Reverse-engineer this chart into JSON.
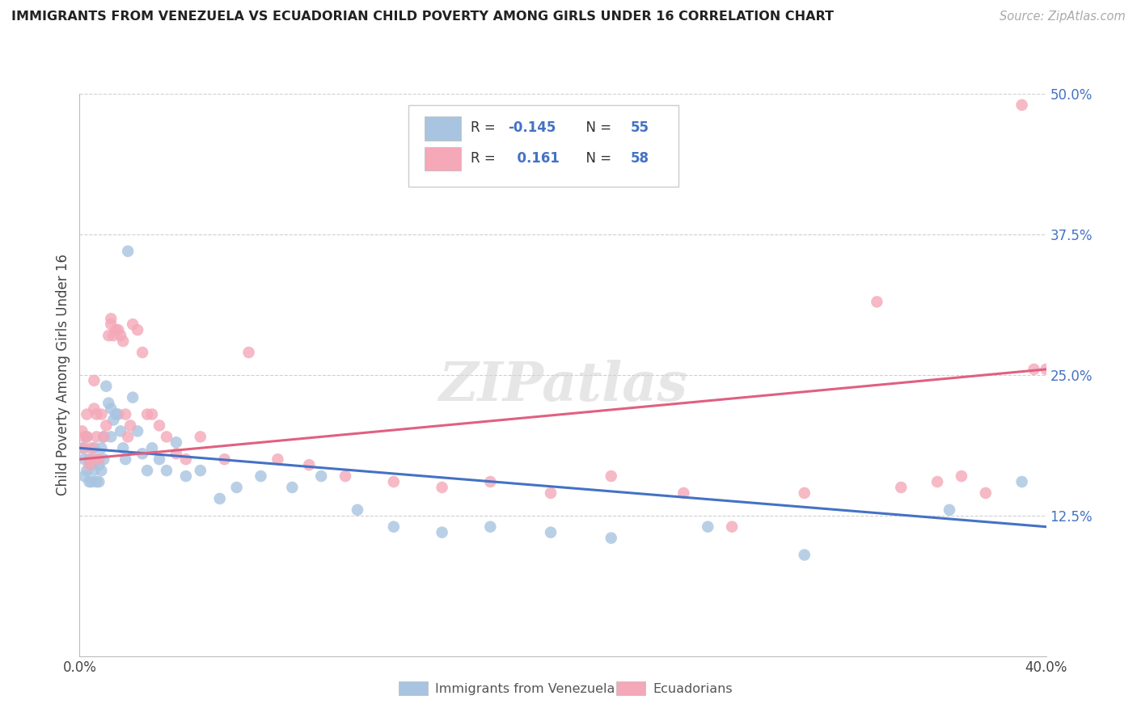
{
  "title": "IMMIGRANTS FROM VENEZUELA VS ECUADORIAN CHILD POVERTY AMONG GIRLS UNDER 16 CORRELATION CHART",
  "source": "Source: ZipAtlas.com",
  "ylabel": "Child Poverty Among Girls Under 16",
  "xlim": [
    0.0,
    0.4
  ],
  "ylim": [
    0.0,
    0.5
  ],
  "xticks": [
    0.0,
    0.05,
    0.1,
    0.15,
    0.2,
    0.25,
    0.3,
    0.35,
    0.4
  ],
  "xticklabels": [
    "0.0%",
    "",
    "",
    "",
    "",
    "",
    "",
    "",
    "40.0%"
  ],
  "yticks_right": [
    0.125,
    0.25,
    0.375,
    0.5
  ],
  "yticklabels_right": [
    "12.5%",
    "25.0%",
    "37.5%",
    "50.0%"
  ],
  "blue_color": "#a8c4e0",
  "pink_color": "#f4a8b8",
  "blue_line_color": "#4472c4",
  "pink_line_color": "#e06080",
  "right_axis_color": "#4472c4",
  "watermark": "ZIPatlas",
  "blue_scatter_x": [
    0.001,
    0.002,
    0.002,
    0.003,
    0.003,
    0.004,
    0.004,
    0.005,
    0.005,
    0.006,
    0.006,
    0.007,
    0.007,
    0.008,
    0.008,
    0.009,
    0.009,
    0.01,
    0.01,
    0.011,
    0.012,
    0.013,
    0.013,
    0.014,
    0.015,
    0.016,
    0.017,
    0.018,
    0.019,
    0.02,
    0.022,
    0.024,
    0.026,
    0.028,
    0.03,
    0.033,
    0.036,
    0.04,
    0.044,
    0.05,
    0.058,
    0.065,
    0.075,
    0.088,
    0.1,
    0.115,
    0.13,
    0.15,
    0.17,
    0.195,
    0.22,
    0.26,
    0.3,
    0.36,
    0.39
  ],
  "blue_scatter_y": [
    0.185,
    0.175,
    0.16,
    0.195,
    0.165,
    0.175,
    0.155,
    0.17,
    0.155,
    0.185,
    0.165,
    0.175,
    0.155,
    0.17,
    0.155,
    0.185,
    0.165,
    0.195,
    0.175,
    0.24,
    0.225,
    0.22,
    0.195,
    0.21,
    0.215,
    0.215,
    0.2,
    0.185,
    0.175,
    0.36,
    0.23,
    0.2,
    0.18,
    0.165,
    0.185,
    0.175,
    0.165,
    0.19,
    0.16,
    0.165,
    0.14,
    0.15,
    0.16,
    0.15,
    0.16,
    0.13,
    0.115,
    0.11,
    0.115,
    0.11,
    0.105,
    0.115,
    0.09,
    0.13,
    0.155
  ],
  "pink_scatter_x": [
    0.001,
    0.002,
    0.002,
    0.003,
    0.003,
    0.004,
    0.005,
    0.005,
    0.006,
    0.006,
    0.007,
    0.007,
    0.008,
    0.009,
    0.01,
    0.011,
    0.012,
    0.013,
    0.013,
    0.014,
    0.015,
    0.016,
    0.017,
    0.018,
    0.019,
    0.02,
    0.021,
    0.022,
    0.024,
    0.026,
    0.028,
    0.03,
    0.033,
    0.036,
    0.04,
    0.044,
    0.05,
    0.06,
    0.07,
    0.082,
    0.095,
    0.11,
    0.13,
    0.15,
    0.17,
    0.195,
    0.22,
    0.25,
    0.27,
    0.3,
    0.33,
    0.355,
    0.375,
    0.39,
    0.4,
    0.395,
    0.365,
    0.34
  ],
  "pink_scatter_y": [
    0.2,
    0.185,
    0.195,
    0.215,
    0.195,
    0.17,
    0.185,
    0.175,
    0.245,
    0.22,
    0.215,
    0.195,
    0.175,
    0.215,
    0.195,
    0.205,
    0.285,
    0.3,
    0.295,
    0.285,
    0.29,
    0.29,
    0.285,
    0.28,
    0.215,
    0.195,
    0.205,
    0.295,
    0.29,
    0.27,
    0.215,
    0.215,
    0.205,
    0.195,
    0.18,
    0.175,
    0.195,
    0.175,
    0.27,
    0.175,
    0.17,
    0.16,
    0.155,
    0.15,
    0.155,
    0.145,
    0.16,
    0.145,
    0.115,
    0.145,
    0.315,
    0.155,
    0.145,
    0.49,
    0.255,
    0.255,
    0.16,
    0.15
  ]
}
